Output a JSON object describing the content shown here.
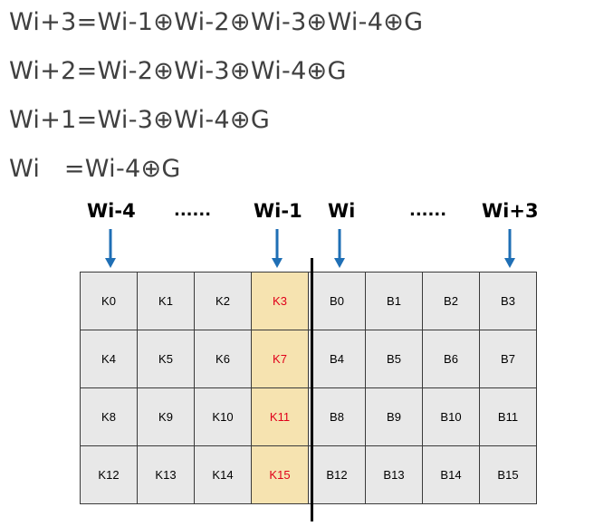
{
  "equations": [
    "Wi+3=Wi-1⊕Wi-2⊕Wi-3⊕Wi-4⊕G",
    "Wi+2=Wi-2⊕Wi-3⊕Wi-4⊕G",
    "Wi+1=Wi-3⊕Wi-4⊕G",
    "Wi   =Wi-4⊕G"
  ],
  "headers": {
    "wi_minus_4": "Wi-4",
    "dots_left": "......",
    "wi_minus_1": "Wi-1",
    "wi": "Wi",
    "dots_right": "......",
    "wi_plus_3": "Wi+3"
  },
  "grid": {
    "rows": [
      [
        "K0",
        "K1",
        "K2",
        "K3",
        "B0",
        "B1",
        "B2",
        "B3"
      ],
      [
        "K4",
        "K5",
        "K6",
        "K7",
        "B4",
        "B5",
        "B6",
        "B7"
      ],
      [
        "K8",
        "K9",
        "K10",
        "K11",
        "B8",
        "B9",
        "B10",
        "B11"
      ],
      [
        "K12",
        "K13",
        "K14",
        "K15",
        "B12",
        "B13",
        "B14",
        "B15"
      ]
    ],
    "highlight_column_index": 3
  },
  "colors": {
    "arrow": "#1f6fb5",
    "highlight_fill": "#f6e3b0",
    "highlight_text": "#e0001a",
    "cell_fill": "#e8e8e8",
    "equation_text": "#404040"
  }
}
